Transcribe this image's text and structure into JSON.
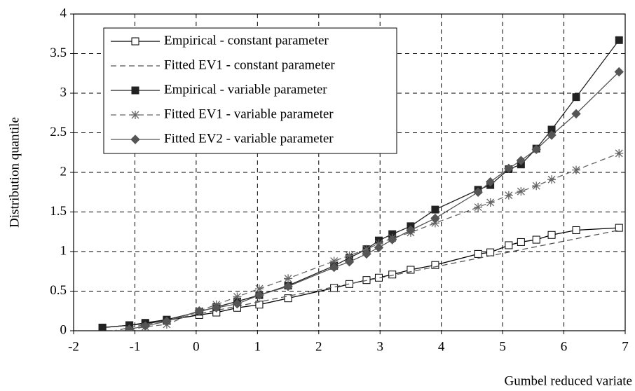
{
  "chart_data": {
    "type": "line",
    "xlabel": "Gumbel reduced variate",
    "ylabel": "Distribution quantile",
    "xlim": [
      -2,
      7
    ],
    "xticks": [
      -2,
      -1,
      0,
      1,
      2,
      3,
      4,
      5,
      6,
      7
    ],
    "ylim": [
      0,
      4
    ],
    "yticks": [
      0,
      0.5,
      1,
      1.5,
      2,
      2.5,
      3,
      3.5,
      4
    ],
    "grid": true,
    "legend": "upper left",
    "series": [
      {
        "name": "Empirical - constant parameter",
        "color": "#000000",
        "marker": "square-open",
        "dash": false,
        "x": [
          -1.53,
          -1.09,
          -0.83,
          -0.48,
          0.05,
          0.33,
          0.67,
          1.03,
          1.5,
          2.25,
          2.5,
          2.78,
          2.98,
          3.2,
          3.5,
          3.9,
          4.6,
          4.8,
          5.1,
          5.3,
          5.55,
          5.8,
          6.2,
          6.9
        ],
        "values": [
          0.04,
          0.07,
          0.09,
          0.13,
          0.2,
          0.23,
          0.29,
          0.33,
          0.41,
          0.54,
          0.59,
          0.64,
          0.67,
          0.71,
          0.77,
          0.83,
          0.97,
          0.99,
          1.08,
          1.12,
          1.15,
          1.21,
          1.27,
          1.3
        ]
      },
      {
        "name": "Fitted EV1 - constant parameter",
        "color": "#555555",
        "marker": "none",
        "dash": true,
        "x": [
          -1.53,
          6.9
        ],
        "values": [
          -0.03,
          1.27
        ]
      },
      {
        "name": "Empirical - variable parameter",
        "color": "#222222",
        "marker": "square",
        "dash": false,
        "x": [
          -1.53,
          -1.09,
          -0.83,
          -0.48,
          0.05,
          0.33,
          0.67,
          1.03,
          1.5,
          2.25,
          2.5,
          2.78,
          2.98,
          3.2,
          3.5,
          3.9,
          4.6,
          4.8,
          5.1,
          5.3,
          5.55,
          5.8,
          6.2,
          6.9
        ],
        "values": [
          0.04,
          0.07,
          0.1,
          0.14,
          0.24,
          0.3,
          0.37,
          0.45,
          0.57,
          0.82,
          0.92,
          1.03,
          1.14,
          1.22,
          1.32,
          1.53,
          1.78,
          1.84,
          2.04,
          2.1,
          2.3,
          2.54,
          2.95,
          3.67
        ]
      },
      {
        "name": "Fitted EV1 - variable parameter",
        "color": "#666666",
        "marker": "star",
        "dash": true,
        "x": [
          -1.09,
          -0.83,
          -0.48,
          0.05,
          0.33,
          0.67,
          1.03,
          1.5,
          2.25,
          2.5,
          2.78,
          2.98,
          3.2,
          3.5,
          3.9,
          4.6,
          4.8,
          5.1,
          5.3,
          5.55,
          5.8,
          6.2,
          6.9
        ],
        "values": [
          0.01,
          0.05,
          0.08,
          0.25,
          0.33,
          0.43,
          0.53,
          0.66,
          0.88,
          0.95,
          1.03,
          1.1,
          1.17,
          1.24,
          1.36,
          1.56,
          1.62,
          1.71,
          1.76,
          1.83,
          1.91,
          2.03,
          2.24
        ]
      },
      {
        "name": "Fitted EV2 - variable parameter",
        "color": "#555555",
        "marker": "diamond",
        "dash": false,
        "x": [
          -1.09,
          -0.83,
          -0.48,
          0.05,
          0.33,
          0.67,
          1.03,
          1.5,
          2.25,
          2.5,
          2.78,
          2.98,
          3.2,
          3.5,
          3.9,
          4.6,
          4.8,
          5.1,
          5.3,
          5.55,
          5.8,
          6.2,
          6.9
        ],
        "values": [
          0.02,
          0.06,
          0.12,
          0.25,
          0.29,
          0.34,
          0.45,
          0.56,
          0.8,
          0.87,
          0.97,
          1.05,
          1.15,
          1.27,
          1.42,
          1.75,
          1.88,
          2.05,
          2.15,
          2.29,
          2.47,
          2.74,
          3.27
        ]
      }
    ]
  }
}
